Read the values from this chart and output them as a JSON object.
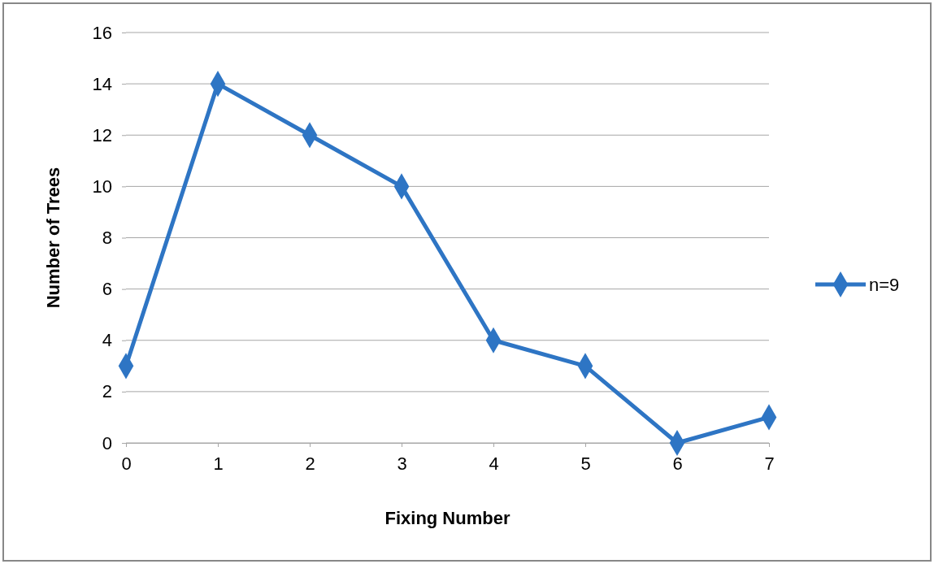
{
  "chart_data": {
    "type": "line",
    "xlabel": "Fixing Number",
    "ylabel": "Number of Trees",
    "x": [
      0,
      1,
      2,
      3,
      4,
      5,
      6,
      7
    ],
    "series": [
      {
        "name": "n=9",
        "color": "#2e75c4",
        "values": [
          3,
          14,
          12,
          10,
          4,
          3,
          0,
          1
        ]
      }
    ],
    "xlim": [
      0,
      7
    ],
    "xticks": [
      0,
      1,
      2,
      3,
      4,
      5,
      6,
      7
    ],
    "ylim": [
      0,
      16
    ],
    "yticks": [
      0,
      2,
      4,
      6,
      8,
      10,
      12,
      14,
      16
    ],
    "grid": "y",
    "legend": "right",
    "marker": "diamond",
    "line_style": "solid"
  }
}
